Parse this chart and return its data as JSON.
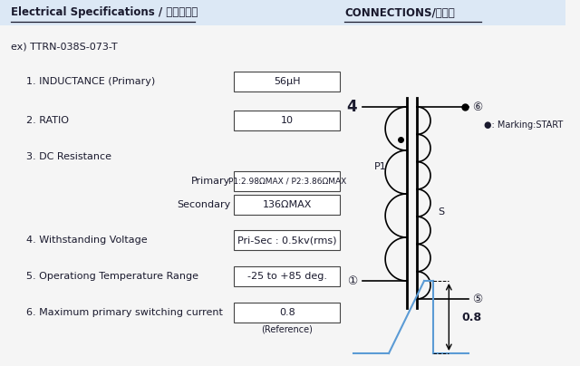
{
  "bg_color": "#f5f5f5",
  "header_left": "Electrical Specifications / 電気的仕様",
  "header_right": "CONNECTIONS/接続図",
  "example_label": "ex) TTRN-038S-073-T",
  "spec1_label": "1. INDUCTANCE (Primary)",
  "spec1_value": "56μH",
  "spec2_label": "2. RATIO",
  "spec2_value": "10",
  "spec3_label": "3. DC Resistance",
  "spec3_sub1_label": "Primary",
  "spec3_sub1_value": "P1:2.98ΩMAX / P2:3.86ΩMAX",
  "spec3_sub2_label": "Secondary",
  "spec3_sub2_value": "136ΩMAX",
  "spec4_label": "4. Withstanding Voltage",
  "spec4_value": "Pri-Sec : 0.5kv(rms)",
  "spec5_label": "5. Operationg Temperature Range",
  "spec5_value": "-25 to +85 deg.",
  "spec6_label": "6. Maximum primary switching current",
  "spec6_value": "0.8",
  "spec6_ref": "(Reference)",
  "marking_label": "●: Marking:START",
  "text_color": "#1a1a2e",
  "box_color": "white",
  "box_edge": "#444444",
  "wave_color": "#5b9bd5",
  "header_bg": "#dce8f5"
}
